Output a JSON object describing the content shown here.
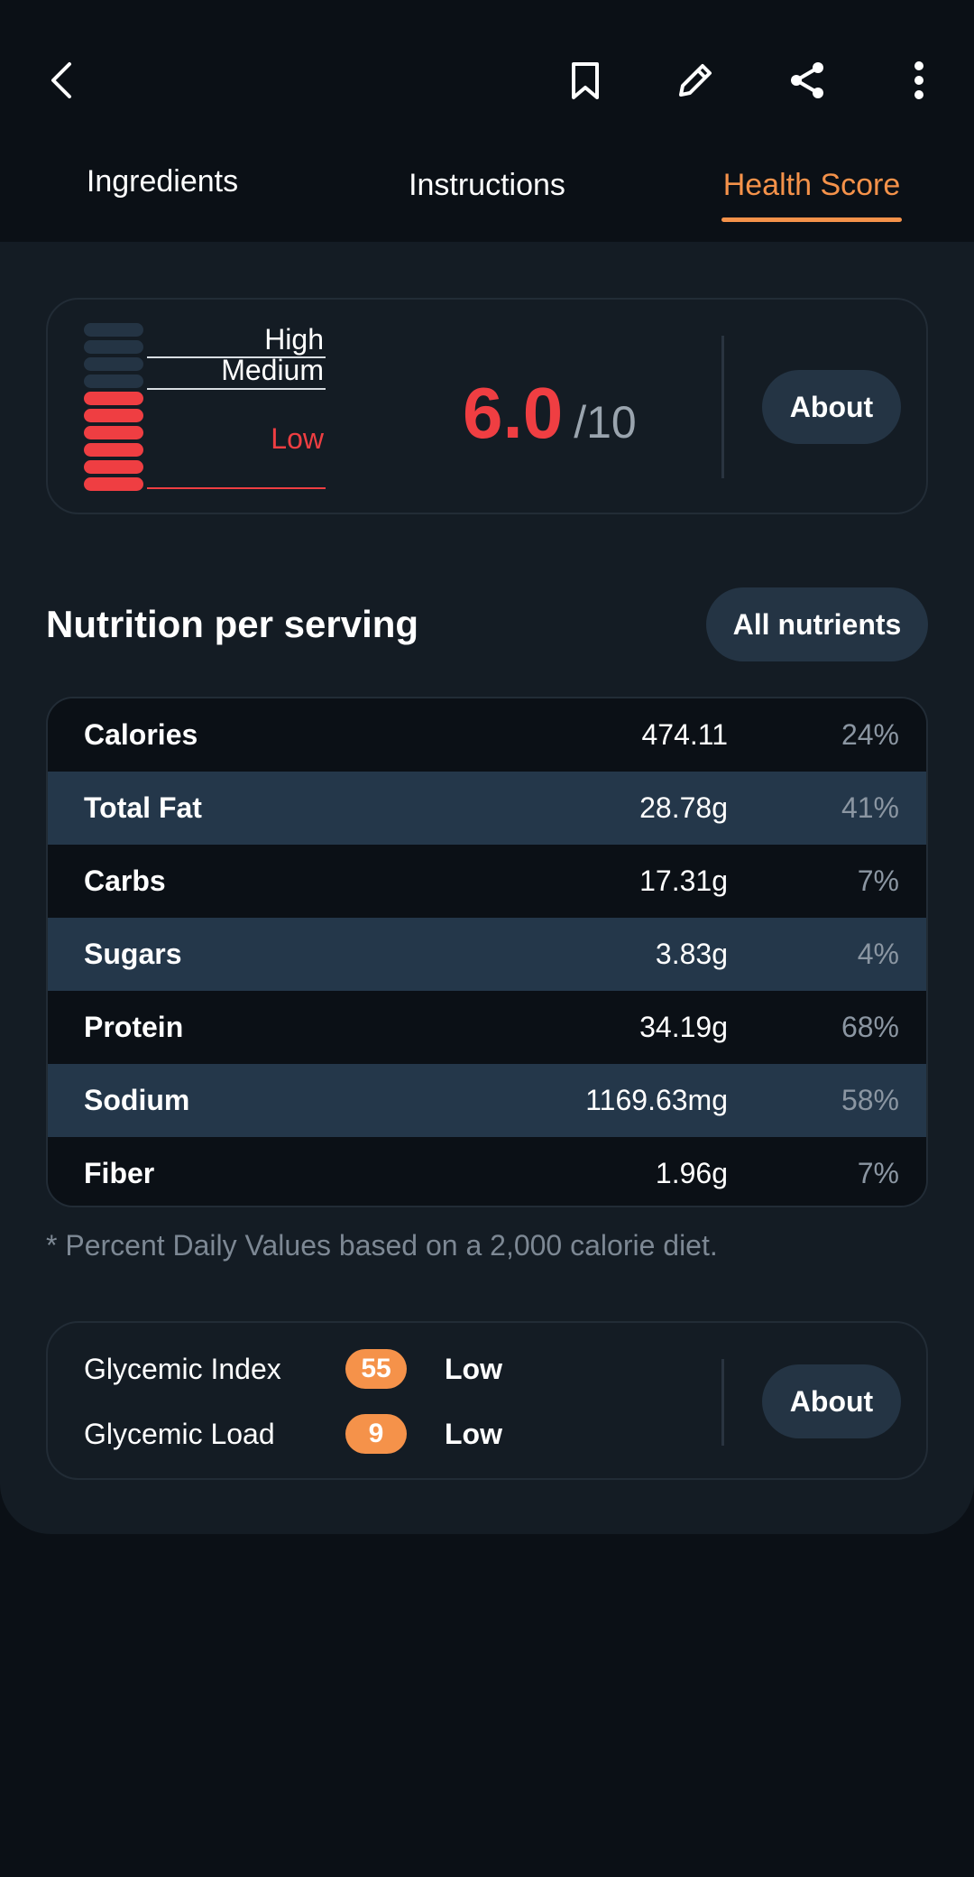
{
  "toolbar": {
    "icons": [
      "back-arrow-icon",
      "bookmark-icon",
      "pencil-icon",
      "share-icon",
      "more-vertical-icon"
    ]
  },
  "tabs": [
    {
      "label": "Ingredients",
      "active": false
    },
    {
      "label": "Instructions",
      "active": false
    },
    {
      "label": "Health Score",
      "active": true
    }
  ],
  "health_score": {
    "levels": {
      "high": "High",
      "medium": "Medium",
      "low": "Low"
    },
    "score": "6.0",
    "denominator": "/10",
    "about_label": "About",
    "meter": {
      "filled_segments": 6,
      "total_segments": 10
    }
  },
  "nutrition": {
    "title": "Nutrition per serving",
    "all_nutrients_label": "All nutrients",
    "rows": [
      {
        "name": "Calories",
        "amount": "474.11",
        "percent": "24%"
      },
      {
        "name": "Total Fat",
        "amount": "28.78g",
        "percent": "41%"
      },
      {
        "name": "Carbs",
        "amount": "17.31g",
        "percent": "7%"
      },
      {
        "name": "Sugars",
        "amount": "3.83g",
        "percent": "4%"
      },
      {
        "name": "Protein",
        "amount": "34.19g",
        "percent": "68%"
      },
      {
        "name": "Sodium",
        "amount": "1169.63mg",
        "percent": "58%"
      },
      {
        "name": "Fiber",
        "amount": "1.96g",
        "percent": "7%"
      }
    ],
    "footnote": "* Percent Daily Values based on a 2,000 calorie diet."
  },
  "glycemic": {
    "index": {
      "label": "Glycemic Index",
      "value": "55",
      "level": "Low"
    },
    "load": {
      "label": "Glycemic Load",
      "value": "9",
      "level": "Low"
    },
    "about_label": "About"
  },
  "colors": {
    "accent": "#f5924a",
    "score": "#ef3e42",
    "meter_empty": "#243444",
    "background": "#0b1016",
    "panel": "#141c24"
  }
}
